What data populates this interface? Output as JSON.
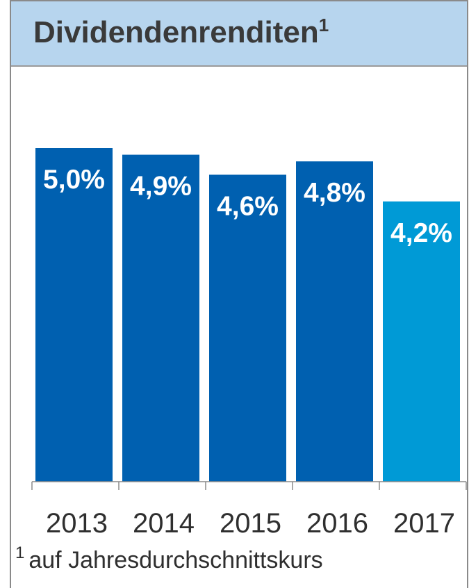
{
  "header": {
    "title": "Dividendenrenditen",
    "title_sup": "1"
  },
  "footnote": {
    "mark": "1",
    "text": "auf Jahresdurchschnittskurs"
  },
  "chart_data": {
    "type": "bar",
    "title": "Dividendenrenditen¹",
    "categories": [
      "2013",
      "2014",
      "2015",
      "2016",
      "2017"
    ],
    "values": [
      5.0,
      4.9,
      4.6,
      4.8,
      4.2
    ],
    "data_labels": [
      "5,0%",
      "4,9%",
      "4,6%",
      "4,8%",
      "4,2%"
    ],
    "ylim": [
      0,
      5.0
    ],
    "grid": false,
    "legend": "none",
    "colors": [
      "#0060b0",
      "#0060b0",
      "#0060b0",
      "#0060b0",
      "#009ad6"
    ]
  }
}
